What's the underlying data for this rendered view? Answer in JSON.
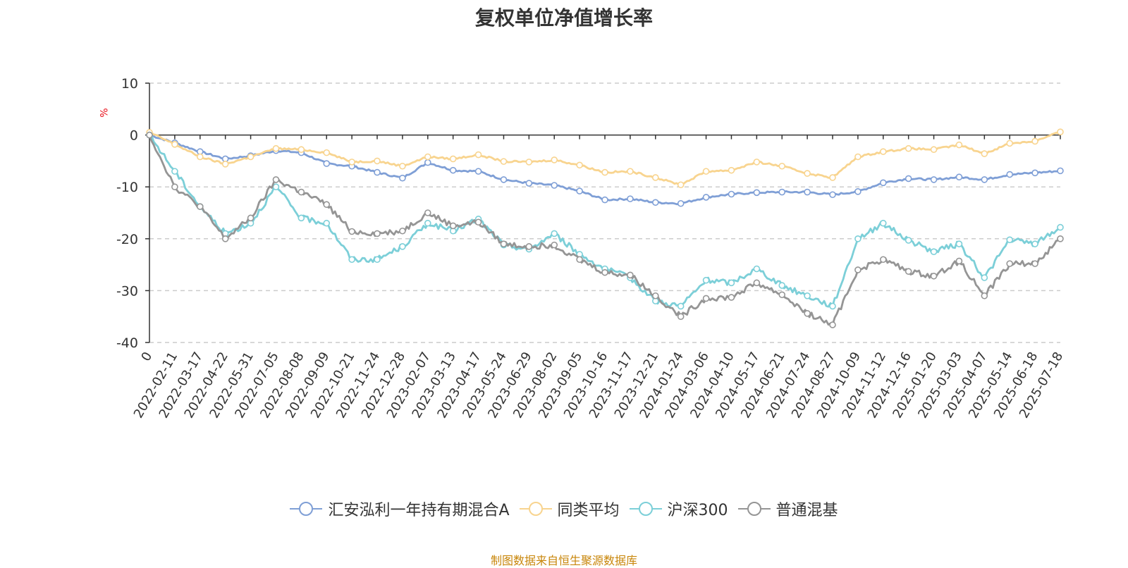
{
  "chart_data": {
    "type": "line",
    "title": "复权单位净值增长率",
    "ylabel": "%",
    "ylim": [
      -40,
      10
    ],
    "yticks": [
      10,
      0,
      -10,
      -20,
      -30,
      -40
    ],
    "grid": true,
    "legend_position": "bottom",
    "x_ticks": [
      "0",
      "2022-02-11",
      "2022-03-17",
      "2022-04-22",
      "2022-05-31",
      "2022-07-05",
      "2022-08-08",
      "2022-09-09",
      "2022-10-21",
      "2022-11-24",
      "2022-12-28",
      "2023-02-07",
      "2023-03-13",
      "2023-04-17",
      "2023-05-24",
      "2023-06-29",
      "2023-08-02",
      "2023-09-05",
      "2023-10-16",
      "2023-11-17",
      "2023-12-21",
      "2024-01-24",
      "2024-03-06",
      "2024-04-10",
      "2024-05-17",
      "2024-06-21",
      "2024-07-24",
      "2024-08-27",
      "2024-10-09",
      "2024-11-12",
      "2024-12-16",
      "2025-01-20",
      "2025-03-03",
      "2025-04-07",
      "2025-05-14",
      "2025-06-18",
      "2025-07-18"
    ],
    "series": [
      {
        "name": "汇安泓利一年持有期混合A",
        "color": "#7f9fd6",
        "values": [
          0,
          -1.5,
          -3.2,
          -4.6,
          -4.0,
          -3.0,
          -3.4,
          -5.5,
          -6.0,
          -7.2,
          -8.3,
          -5.3,
          -6.8,
          -7.0,
          -8.6,
          -9.3,
          -9.7,
          -10.8,
          -12.5,
          -12.3,
          -13.0,
          -13.2,
          -12.0,
          -11.4,
          -11.1,
          -11.0,
          -11.0,
          -11.5,
          -10.9,
          -9.2,
          -8.4,
          -8.6,
          -8.1,
          -8.6,
          -7.6,
          -7.3,
          -6.9
        ]
      },
      {
        "name": "同类平均",
        "color": "#f8d48f",
        "values": [
          0.5,
          -1.8,
          -4.2,
          -5.6,
          -4.2,
          -2.6,
          -2.8,
          -3.4,
          -5.2,
          -5.0,
          -6.0,
          -4.2,
          -4.6,
          -3.8,
          -5.1,
          -5.2,
          -4.8,
          -5.8,
          -7.2,
          -7.0,
          -8.2,
          -9.6,
          -7.0,
          -6.8,
          -5.2,
          -6.0,
          -7.4,
          -8.2,
          -4.2,
          -3.2,
          -2.6,
          -2.8,
          -1.9,
          -3.6,
          -1.6,
          -1.2,
          0.6
        ]
      },
      {
        "name": "沪深300",
        "color": "#7ccfd8",
        "values": [
          0,
          -7.0,
          -13.8,
          -19.0,
          -17.0,
          -10.0,
          -16.0,
          -17.0,
          -24.0,
          -24.0,
          -21.5,
          -17.0,
          -18.5,
          -16.2,
          -21.2,
          -22.0,
          -19.0,
          -23.0,
          -25.8,
          -27.5,
          -32.0,
          -33.0,
          -28.0,
          -28.5,
          -25.8,
          -29.0,
          -31.0,
          -33.0,
          -20.0,
          -17.0,
          -20.3,
          -22.5,
          -21.0,
          -27.5,
          -20.2,
          -21.0,
          -17.8
        ]
      },
      {
        "name": "普通混基",
        "color": "#959595",
        "values": [
          0,
          -10.0,
          -13.8,
          -20.0,
          -16.0,
          -8.6,
          -11.0,
          -13.4,
          -18.6,
          -19.0,
          -18.5,
          -15.0,
          -17.5,
          -16.8,
          -21.0,
          -21.5,
          -21.2,
          -24.0,
          -26.5,
          -27.0,
          -31.0,
          -35.0,
          -31.5,
          -31.3,
          -28.5,
          -30.8,
          -34.4,
          -36.6,
          -26.0,
          -24.0,
          -26.3,
          -27.2,
          -24.3,
          -31.0,
          -24.8,
          -24.8,
          -20.0
        ]
      }
    ]
  },
  "source_note": "制图数据来自恒生聚源数据库"
}
